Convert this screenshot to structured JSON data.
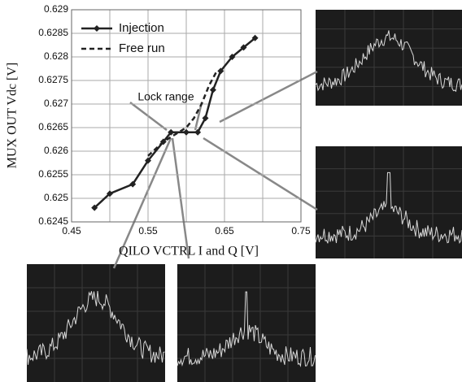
{
  "chart_data": {
    "type": "line",
    "xlabel": "QILO VCTRL I and Q [V]",
    "ylabel": "MUX OUT Vdc [V]",
    "annotation": "Lock range",
    "xlim": [
      0.45,
      0.75
    ],
    "xticks": [
      0.45,
      0.55,
      0.65,
      0.75
    ],
    "xminor": [
      0.5,
      0.6,
      0.7
    ],
    "ylim": [
      0.6245,
      0.629
    ],
    "yticks": [
      0.6245,
      0.625,
      0.6255,
      0.626,
      0.6265,
      0.627,
      0.6275,
      0.628,
      0.6285,
      0.629
    ],
    "grid": true,
    "legend": "upper left",
    "series": [
      {
        "name": "Injection",
        "color": "#222222",
        "style": "solid",
        "marker": "diamond",
        "x": [
          0.48,
          0.5,
          0.53,
          0.55,
          0.57,
          0.58,
          0.6,
          0.615,
          0.625,
          0.635,
          0.645,
          0.66,
          0.675,
          0.69
        ],
        "values": [
          0.6248,
          0.6251,
          0.6253,
          0.6258,
          0.6262,
          0.6264,
          0.6264,
          0.6264,
          0.6267,
          0.6273,
          0.6277,
          0.628,
          0.6282,
          0.6284
        ]
      },
      {
        "name": "Free run",
        "color": "#222222",
        "style": "dashed",
        "marker": "none",
        "x": [
          0.55,
          0.57,
          0.59,
          0.6,
          0.61,
          0.62,
          0.63,
          0.64
        ],
        "values": [
          0.6259,
          0.6262,
          0.6264,
          0.6265,
          0.6267,
          0.627,
          0.6274,
          0.6277
        ]
      }
    ]
  }
}
